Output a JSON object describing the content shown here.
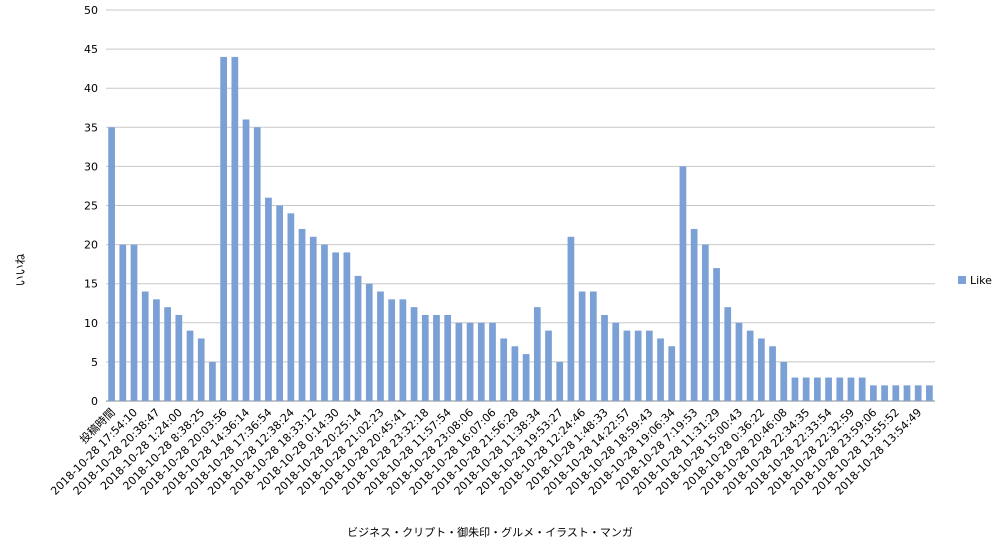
{
  "chart_data": {
    "type": "bar",
    "x_label": "ビジネス・クリプト・御朱印・グルメ・イラスト・マンガ",
    "y_label": "いいね",
    "categories": [
      "投稿時間",
      null,
      "2018-10-28 17:54:10",
      null,
      "2018-10-28 20:38:47",
      null,
      "2018-10-28 1:24:00",
      null,
      "2018-10-28 8:38:25",
      null,
      "2018-10-28 20:03:56",
      null,
      "2018-10-28 14:36:14",
      null,
      "2018-10-28 17:36:54",
      null,
      "2018-10-28 12:38:24",
      null,
      "2018-10-28 18:33:12",
      null,
      "2018-10-28 0:14:30",
      null,
      "2018-10-28 20:25:14",
      null,
      "2018-10-28 21:02:23",
      null,
      "2018-10-28 20:45:41",
      null,
      "2018-10-28 23:32:18",
      null,
      "2018-10-28 11:57:54",
      null,
      "2018-10-28 23:08:06",
      null,
      "2018-10-28 16:07:06",
      null,
      "2018-10-28 21:56:28",
      null,
      "2018-10-28 11:38:34",
      null,
      "2018-10-28 19:53:27",
      null,
      "2018-10-28 12:24:46",
      null,
      "2018-10-28 1:48:33",
      null,
      "2018-10-28 14:22:57",
      null,
      "2018-10-28 18:59:43",
      null,
      "2018-10-28 19:06:34",
      null,
      "2018-10-28 7:19:53",
      null,
      "2018-10-28 11:31:29",
      null,
      "2018-10-28 15:00:43",
      null,
      "2018-10-28 0:36:22",
      null,
      "2018-10-28 20:46:08",
      null,
      "2018-10-28 22:34:35",
      null,
      "2018-10-28 22:33:54",
      null,
      "2018-10-28 22:32:59",
      null,
      "2018-10-28 23:59:06",
      null,
      "2018-10-28 13:55:52",
      null,
      "2018-10-28 13:54:49",
      null
    ],
    "series": [
      {
        "name": "Like",
        "color": "#7ba0d6",
        "values": [
          35,
          20,
          20,
          14,
          13,
          12,
          11,
          9,
          8,
          5,
          44,
          44,
          36,
          35,
          26,
          25,
          24,
          22,
          21,
          20,
          19,
          19,
          16,
          15,
          14,
          13,
          13,
          12,
          11,
          11,
          11,
          10,
          10,
          10,
          10,
          8,
          7,
          6,
          12,
          9,
          5,
          21,
          14,
          14,
          11,
          10,
          9,
          9,
          9,
          8,
          7,
          30,
          22,
          20,
          17,
          12,
          10,
          9,
          8,
          7,
          5,
          3,
          3,
          3,
          3,
          3,
          3,
          3,
          2,
          2,
          2,
          2,
          2,
          2
        ]
      }
    ],
    "ylim": [
      0,
      50
    ],
    "yticks": [
      0,
      5,
      10,
      15,
      20,
      25,
      30,
      35,
      40,
      45,
      50
    ],
    "grid": true,
    "legend": "right"
  }
}
